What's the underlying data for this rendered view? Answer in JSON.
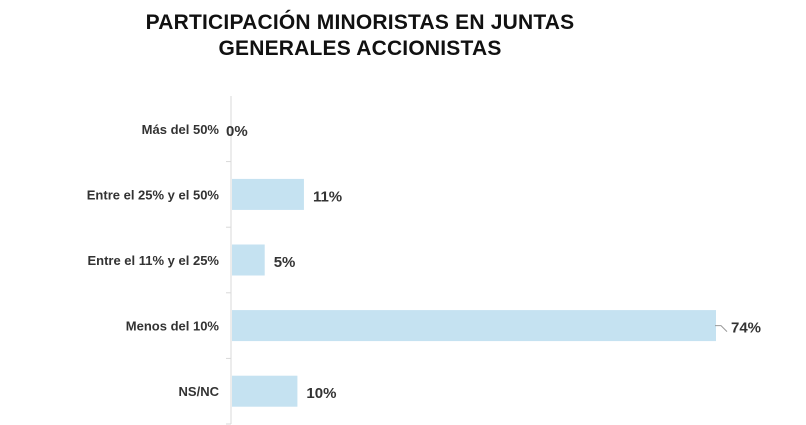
{
  "chart_data": {
    "type": "bar",
    "orientation": "horizontal",
    "title_lines": [
      "PARTICIPACIÓN MINORISTAS EN JUNTAS",
      "GENERALES ACCIONISTAS"
    ],
    "categories": [
      "Más del 50%",
      "Entre el 25% y el 50%",
      "Entre el 11% y el 25%",
      "Menos del 10%",
      "NS/NC"
    ],
    "values": [
      0,
      11,
      5,
      74,
      10
    ],
    "value_labels": [
      "0%",
      "11%",
      "5%",
      "74%",
      "10%"
    ],
    "xlim": [
      0,
      74
    ],
    "bar_color": "#c5e2f1",
    "axis_color": "#d9d9d9",
    "grid": false,
    "legend": "none"
  }
}
